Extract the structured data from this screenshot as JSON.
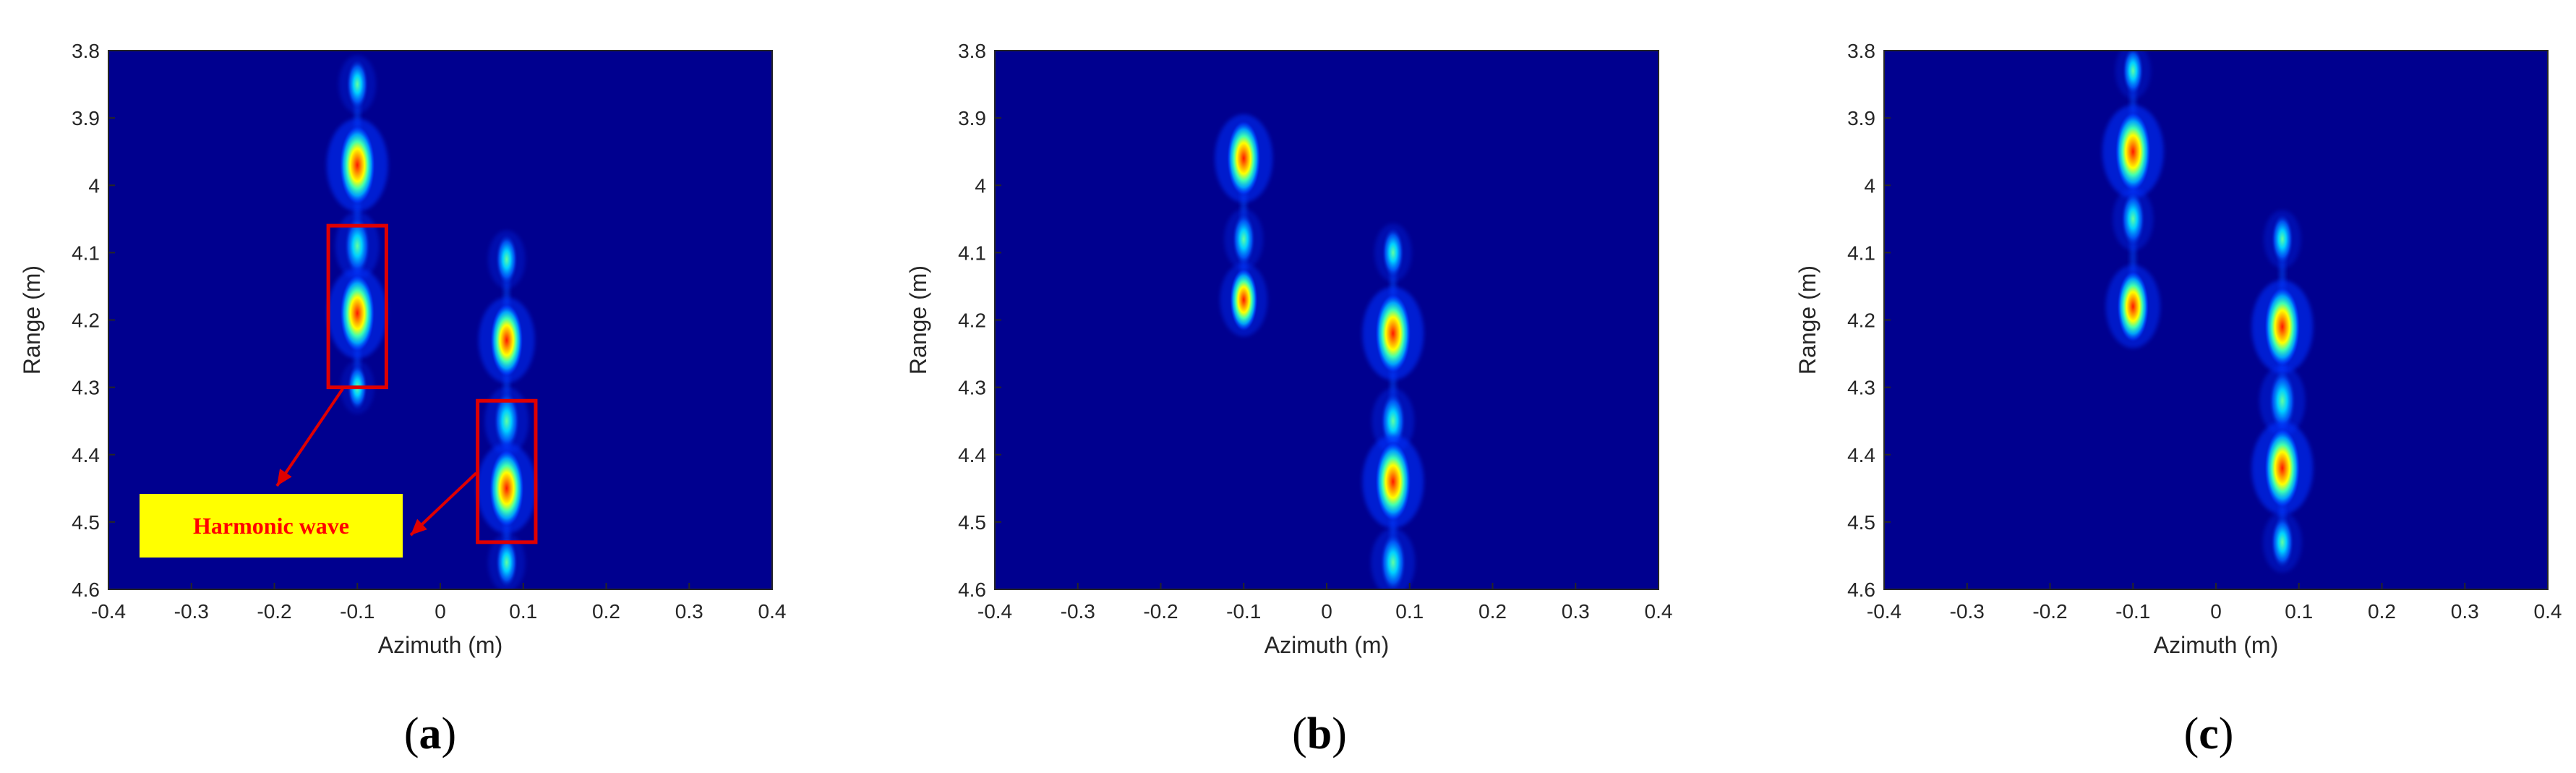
{
  "chart_data": [
    {
      "type": "heatmap",
      "panel_label": "a",
      "xlabel": "Azimuth (m)",
      "ylabel": "Range (m)",
      "xlim": [
        -0.4,
        0.4
      ],
      "ylim": [
        3.8,
        4.6
      ],
      "y_reversed": true,
      "xticks": [
        "-0.4",
        "-0.3",
        "-0.2",
        "-0.1",
        "0",
        "0.1",
        "0.2",
        "0.3",
        "0.4"
      ],
      "yticks": [
        "3.8",
        "3.9",
        "4",
        "4.1",
        "4.2",
        "4.3",
        "4.4",
        "4.5",
        "4.6"
      ],
      "colormap": "jet",
      "background_color": "#00008f",
      "spots": [
        {
          "x": -0.1,
          "y": 3.85,
          "intensity": 0.3
        },
        {
          "x": -0.1,
          "y": 3.97,
          "intensity": 1.0
        },
        {
          "x": -0.1,
          "y": 4.09,
          "intensity": 0.5
        },
        {
          "x": -0.1,
          "y": 4.19,
          "intensity": 0.95
        },
        {
          "x": -0.1,
          "y": 4.3,
          "intensity": 0.2
        },
        {
          "x": 0.08,
          "y": 4.11,
          "intensity": 0.3
        },
        {
          "x": 0.08,
          "y": 4.23,
          "intensity": 0.85
        },
        {
          "x": 0.08,
          "y": 4.35,
          "intensity": 0.5
        },
        {
          "x": 0.08,
          "y": 4.45,
          "intensity": 0.95
        },
        {
          "x": 0.08,
          "y": 4.56,
          "intensity": 0.3
        }
      ],
      "annotation": {
        "text": "Harmonic wave",
        "boxes": [
          {
            "x": [
              -0.135,
              -0.065
            ],
            "y": [
              4.06,
              4.3
            ]
          },
          {
            "x": [
              0.045,
              0.115
            ],
            "y": [
              4.32,
              4.53
            ]
          }
        ]
      }
    },
    {
      "type": "heatmap",
      "panel_label": "b",
      "xlabel": "Azimuth (m)",
      "ylabel": "Range (m)",
      "xlim": [
        -0.4,
        0.4
      ],
      "ylim": [
        3.8,
        4.6
      ],
      "y_reversed": true,
      "xticks": [
        "-0.4",
        "-0.3",
        "-0.2",
        "-0.1",
        "0",
        "0.1",
        "0.2",
        "0.3",
        "0.4"
      ],
      "yticks": [
        "3.8",
        "3.9",
        "4",
        "4.1",
        "4.2",
        "4.3",
        "4.4",
        "4.5",
        "4.6"
      ],
      "colormap": "jet",
      "background_color": "#00008f",
      "spots": [
        {
          "x": -0.1,
          "y": 3.96,
          "intensity": 0.9
        },
        {
          "x": -0.1,
          "y": 4.08,
          "intensity": 0.35
        },
        {
          "x": -0.1,
          "y": 4.17,
          "intensity": 0.6
        },
        {
          "x": 0.08,
          "y": 4.1,
          "intensity": 0.3
        },
        {
          "x": 0.08,
          "y": 4.22,
          "intensity": 1.0
        },
        {
          "x": 0.08,
          "y": 4.35,
          "intensity": 0.45
        },
        {
          "x": 0.08,
          "y": 4.44,
          "intensity": 1.0
        },
        {
          "x": 0.08,
          "y": 4.56,
          "intensity": 0.5
        }
      ]
    },
    {
      "type": "heatmap",
      "panel_label": "c",
      "xlabel": "Azimuth (m)",
      "ylabel": "Range (m)",
      "xlim": [
        -0.4,
        0.4
      ],
      "ylim": [
        3.8,
        4.6
      ],
      "y_reversed": true,
      "xticks": [
        "-0.4",
        "-0.3",
        "-0.2",
        "-0.1",
        "0",
        "0.1",
        "0.2",
        "0.3",
        "0.4"
      ],
      "yticks": [
        "3.8",
        "3.9",
        "4",
        "4.1",
        "4.2",
        "4.3",
        "4.4",
        "4.5",
        "4.6"
      ],
      "colormap": "jet",
      "background_color": "#00008f",
      "spots": [
        {
          "x": -0.1,
          "y": 3.83,
          "intensity": 0.25
        },
        {
          "x": -0.1,
          "y": 3.95,
          "intensity": 1.0
        },
        {
          "x": -0.1,
          "y": 4.05,
          "intensity": 0.4
        },
        {
          "x": -0.1,
          "y": 4.18,
          "intensity": 0.8
        },
        {
          "x": 0.08,
          "y": 4.08,
          "intensity": 0.3
        },
        {
          "x": 0.08,
          "y": 4.21,
          "intensity": 1.0
        },
        {
          "x": 0.08,
          "y": 4.32,
          "intensity": 0.55
        },
        {
          "x": 0.08,
          "y": 4.42,
          "intensity": 1.0
        },
        {
          "x": 0.08,
          "y": 4.53,
          "intensity": 0.35
        }
      ]
    }
  ]
}
